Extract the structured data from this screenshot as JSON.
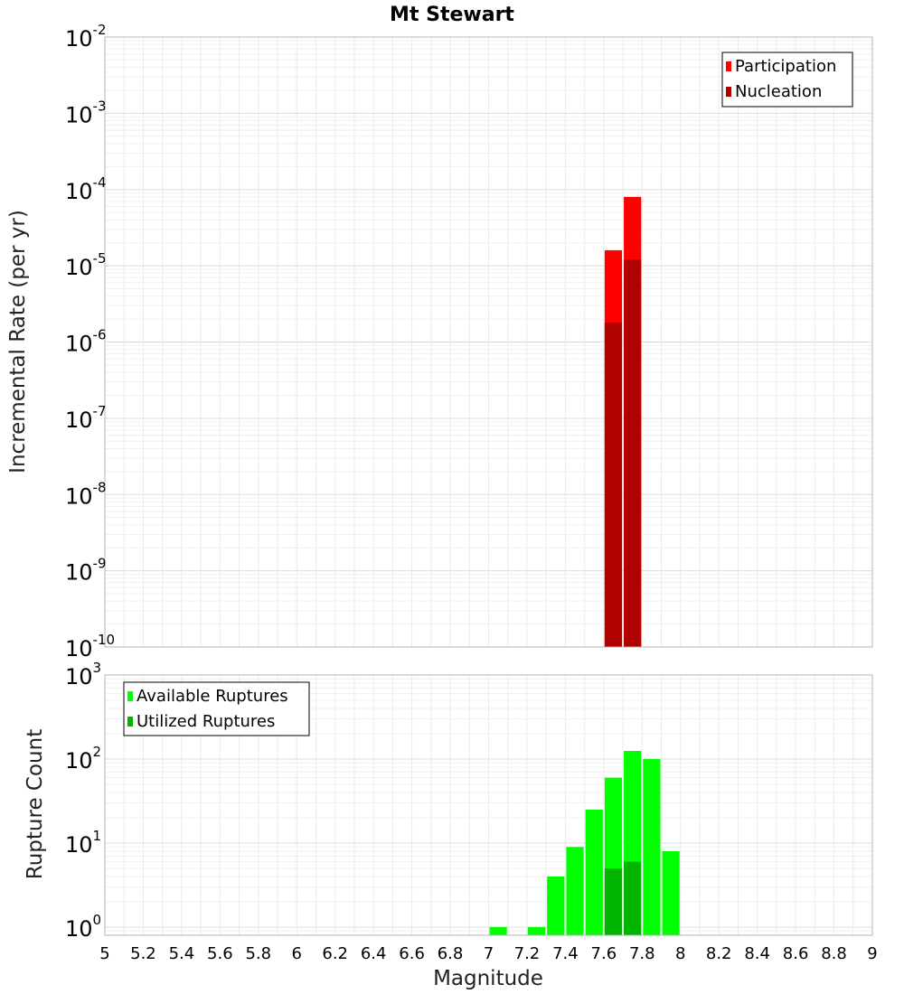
{
  "chart_data": [
    {
      "type": "bar",
      "title": "Mt Stewart",
      "ylabel": "Incremental Rate (per yr)",
      "yscale": "log",
      "ylim": [
        1e-10,
        0.01
      ],
      "xlim": [
        5,
        9
      ],
      "y_ticks": [
        {
          "base": "10",
          "exp": "-10",
          "value": 1e-10
        },
        {
          "base": "10",
          "exp": "-9",
          "value": 1e-09
        },
        {
          "base": "10",
          "exp": "-8",
          "value": 1e-08
        },
        {
          "base": "10",
          "exp": "-7",
          "value": 1e-07
        },
        {
          "base": "10",
          "exp": "-6",
          "value": 1e-06
        },
        {
          "base": "10",
          "exp": "-5",
          "value": 1e-05
        },
        {
          "base": "10",
          "exp": "-4",
          "value": 0.0001
        },
        {
          "base": "10",
          "exp": "-3",
          "value": 0.001
        },
        {
          "base": "10",
          "exp": "-2",
          "value": 0.01
        }
      ],
      "grid": true,
      "legend_position": "top-right",
      "series": [
        {
          "name": "Participation",
          "color": "#ff0000",
          "x": [
            7.65,
            7.75
          ],
          "values": [
            1.6e-05,
            8e-05
          ]
        },
        {
          "name": "Nucleation",
          "color": "#b00000",
          "x": [
            7.65,
            7.75
          ],
          "values": [
            1.8e-06,
            1.2e-05
          ]
        }
      ]
    },
    {
      "type": "bar",
      "ylabel": "Rupture Count",
      "xlabel": "Magnitude",
      "yscale": "log",
      "ylim": [
        0.8,
        1000
      ],
      "xlim": [
        5,
        9
      ],
      "x_ticks": [
        "5",
        "5.2",
        "5.4",
        "5.6",
        "5.8",
        "6",
        "6.2",
        "6.4",
        "6.6",
        "6.8",
        "7",
        "7.2",
        "7.4",
        "7.6",
        "7.8",
        "8",
        "8.2",
        "8.4",
        "8.6",
        "8.8",
        "9"
      ],
      "y_ticks": [
        {
          "base": "10",
          "exp": "0",
          "value": 1
        },
        {
          "base": "10",
          "exp": "1",
          "value": 10
        },
        {
          "base": "10",
          "exp": "2",
          "value": 100
        },
        {
          "base": "10",
          "exp": "3",
          "value": 1000
        }
      ],
      "grid": true,
      "legend_position": "top-left",
      "series": [
        {
          "name": "Available Ruptures",
          "color": "#00ff00",
          "x": [
            7.05,
            7.25,
            7.35,
            7.45,
            7.55,
            7.65,
            7.75,
            7.85,
            7.95
          ],
          "values": [
            1,
            1,
            4,
            9,
            25,
            60,
            125,
            100,
            8
          ]
        },
        {
          "name": "Utilized Ruptures",
          "color": "#00b400",
          "x": [
            7.65,
            7.75
          ],
          "values": [
            5,
            6
          ]
        }
      ]
    }
  ]
}
